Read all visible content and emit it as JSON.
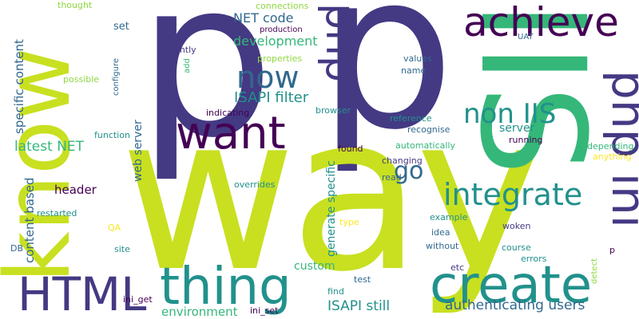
{
  "word_cloud": {
    "background_color": "#ffffff",
    "palette": [
      "#440154",
      "#443983",
      "#31688e",
      "#21918c",
      "#35b779",
      "#90d743",
      "#c8e020",
      "#fde725"
    ],
    "words": [
      "p",
      "p",
      "way",
      "IIS",
      "know",
      "thing",
      "create",
      "want",
      "HTML",
      "achieve",
      "php",
      "php ini",
      "integrate",
      "now",
      "go",
      "non IIS",
      "ISAPI filter",
      "authenticating users",
      "latest NET",
      "NET code",
      "development",
      "ISAPI still",
      "environment",
      "specific content",
      "content based",
      "generate specific",
      "web server",
      "server",
      "header",
      "custom",
      "set",
      "thought",
      "connections",
      "production",
      "slightly",
      "configure",
      "properties",
      "add",
      "values",
      "name",
      "UAT",
      "possible",
      "indicating",
      "browser",
      "reference",
      "recognise",
      "running",
      "automatically",
      "depending",
      "anything",
      "found",
      "changing",
      "read",
      "function",
      "overrides",
      "restarted",
      "QA",
      "type",
      "DB",
      "site",
      "example",
      "woken",
      "idea",
      "course",
      "without",
      "errors",
      "etc",
      "test",
      "find",
      "detect",
      "ini_get",
      "ini_set"
    ]
  }
}
